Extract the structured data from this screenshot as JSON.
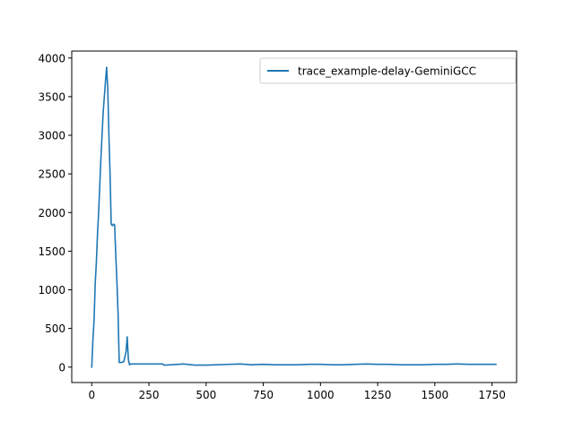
{
  "chart_data": {
    "type": "line",
    "title": "",
    "xlabel": "",
    "ylabel": "",
    "xlim": [
      -87.5,
      1857.5
    ],
    "ylim": [
      -200,
      4090
    ],
    "x_ticks": [
      0,
      250,
      500,
      750,
      1000,
      1250,
      1500,
      1750
    ],
    "y_ticks": [
      0,
      500,
      1000,
      1500,
      2000,
      2500,
      3000,
      3500,
      4000
    ],
    "legend_position": "top-right",
    "grid": false,
    "series": [
      {
        "name": "trace_example-delay-GeminiGCC",
        "color": "#1f77b4",
        "x": [
          0,
          5,
          10,
          15,
          20,
          25,
          30,
          35,
          40,
          45,
          50,
          55,
          60,
          65,
          70,
          75,
          80,
          85,
          90,
          95,
          100,
          105,
          110,
          115,
          120,
          125,
          130,
          140,
          150,
          155,
          160,
          165,
          170,
          250,
          310,
          315,
          350,
          400,
          450,
          500,
          550,
          600,
          650,
          700,
          750,
          800,
          850,
          900,
          950,
          1000,
          1050,
          1100,
          1150,
          1200,
          1250,
          1300,
          1350,
          1400,
          1450,
          1500,
          1550,
          1600,
          1650,
          1700,
          1767
        ],
        "y": [
          0,
          350,
          600,
          1080,
          1350,
          1720,
          2000,
          2350,
          2700,
          3000,
          3300,
          3500,
          3700,
          3880,
          3600,
          3000,
          2500,
          1850,
          1830,
          1850,
          1840,
          1450,
          1100,
          700,
          60,
          60,
          60,
          70,
          200,
          390,
          100,
          30,
          40,
          40,
          40,
          25,
          30,
          40,
          25,
          25,
          30,
          35,
          40,
          30,
          35,
          30,
          30,
          30,
          35,
          35,
          30,
          30,
          35,
          40,
          35,
          35,
          30,
          30,
          30,
          35,
          35,
          40,
          35,
          35,
          35
        ]
      }
    ]
  }
}
